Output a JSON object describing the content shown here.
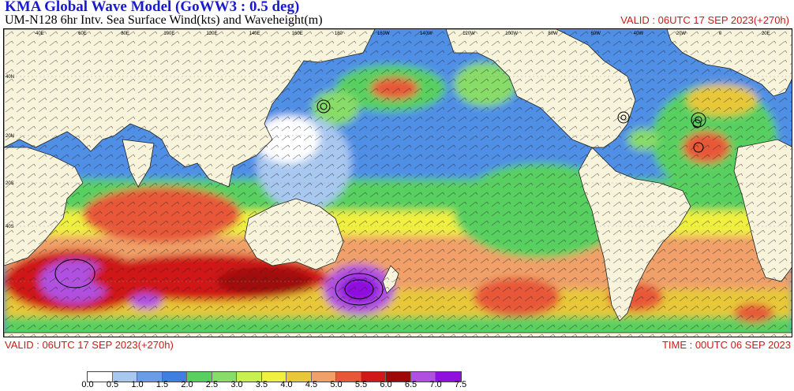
{
  "header": {
    "title": "KMA  Global Wave Model (GoWW3 : 0.5 deg)",
    "subtitle": "UM-N128  6hr Intv. Sea Surface Wind(kts) and Waveheight(m)",
    "valid_top": "VALID : 06UTC 17 SEP 2023(+270h)"
  },
  "footer": {
    "valid_bottom": "VALID : 06UTC 17 SEP 2023(+270h)",
    "time": "TIME : 00UTC 06 SEP 2023"
  },
  "map": {
    "lat_labels": [
      "40N",
      "20N",
      "20S",
      "40S"
    ],
    "lon_labels": [
      "40E",
      "60E",
      "80E",
      "100E",
      "120E",
      "140E",
      "160E",
      "180",
      "160W",
      "140W",
      "120W",
      "100W",
      "80W",
      "60W",
      "40W",
      "20W",
      "0",
      "20E"
    ]
  },
  "colorbar": {
    "labels": [
      "0.0",
      "0.5",
      "1.0",
      "1.5",
      "2.0",
      "2.5",
      "3.0",
      "3.5",
      "4.0",
      "4.5",
      "5.0",
      "5.5",
      "6.0",
      "6.5",
      "7.0",
      "7.5"
    ],
    "colors": [
      "#ffffff",
      "#a8c8f0",
      "#6a9ce8",
      "#3f7fe0",
      "#58d060",
      "#88dc68",
      "#c8f050",
      "#f0f040",
      "#e8c838",
      "#f0a068",
      "#e85838",
      "#d01818",
      "#a00808",
      "#b050e0",
      "#9010e0"
    ]
  },
  "colors": {
    "title": "#1a1ad0",
    "valid": "#d01818",
    "land": "#f8f4dc",
    "ocean_base": "#4f8fe6"
  }
}
